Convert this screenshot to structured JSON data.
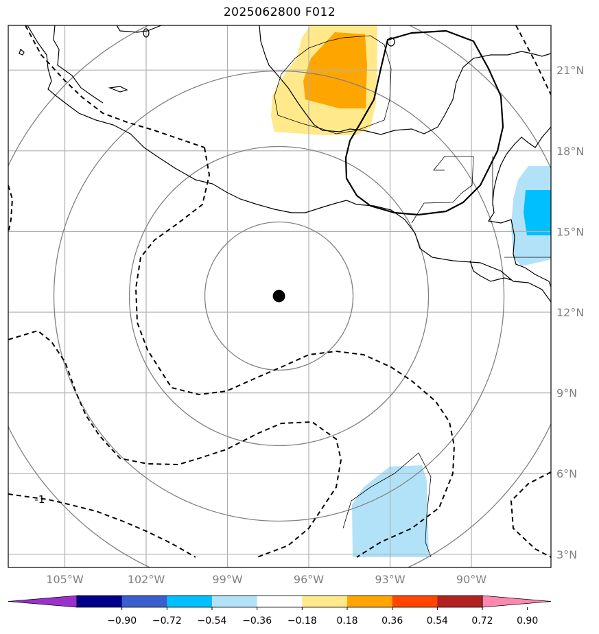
{
  "title": "2025062800 F012",
  "center_marker": {
    "lon": -97.1,
    "lat": 12.6
  },
  "lat_labels": [
    {
      "text": "21°N",
      "lat": 21
    },
    {
      "text": "18°N",
      "lat": 18
    },
    {
      "text": "15°N",
      "lat": 15
    },
    {
      "text": "12°N",
      "lat": 12
    },
    {
      "text": "9°N",
      "lat": 9
    },
    {
      "text": "6°N",
      "lat": 6
    },
    {
      "text": "3°N",
      "lat": 3
    }
  ],
  "lon_labels": [
    {
      "text": "105°W",
      "lon": -105
    },
    {
      "text": "102°W",
      "lon": -102
    },
    {
      "text": "99°W",
      "lon": -99
    },
    {
      "text": "96°W",
      "lon": -96
    },
    {
      "text": "93°W",
      "lon": -93
    },
    {
      "text": "90°W",
      "lon": -90
    }
  ],
  "contour_label": "-1",
  "colorbar": {
    "colors": [
      "#9932cc",
      "#00008b",
      "#3a5fcd",
      "#00bfff",
      "#b2e2f8",
      "#ffffff",
      "#ffe98a",
      "#ffa500",
      "#ff4500",
      "#b22222",
      "#ff88b0"
    ],
    "ticks": [
      "−0.90",
      "−0.72",
      "−0.54",
      "−0.36",
      "−0.18",
      "0.18",
      "0.36",
      "0.54",
      "0.72",
      "0.90"
    ]
  }
}
